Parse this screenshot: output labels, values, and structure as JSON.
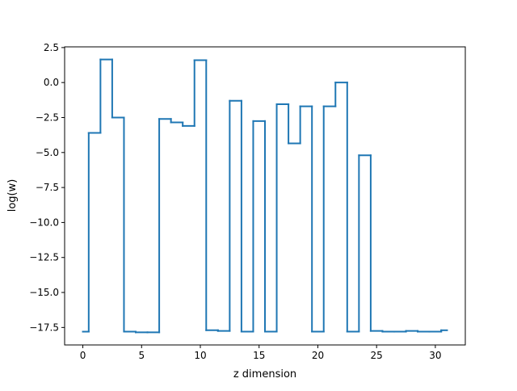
{
  "colors": {
    "series_line": "#1f77b4",
    "axes": "#000000",
    "background": "#ffffff"
  },
  "chart_data": {
    "type": "line",
    "drawstyle": "steps-mid",
    "title": "",
    "xlabel": "z dimension",
    "ylabel": "log(w)",
    "xlim": [
      -1.55,
      32.55
    ],
    "ylim": [
      -18.75,
      2.55
    ],
    "grid": false,
    "legend": "none",
    "x_ticks": [
      0,
      5,
      10,
      15,
      20,
      25,
      30
    ],
    "x_tick_labels": [
      "0",
      "5",
      "10",
      "15",
      "20",
      "25",
      "30"
    ],
    "y_ticks": [
      2.5,
      0.0,
      -2.5,
      -5.0,
      -7.5,
      -10.0,
      -12.5,
      -15.0,
      -17.5
    ],
    "y_tick_labels": [
      "2.5",
      "0.0",
      "−2.5",
      "−5.0",
      "−7.5",
      "−10.0",
      "−12.5",
      "−15.0",
      "−17.5"
    ],
    "x": [
      0,
      1,
      2,
      3,
      4,
      5,
      6,
      7,
      8,
      9,
      10,
      11,
      12,
      13,
      14,
      15,
      16,
      17,
      18,
      19,
      20,
      21,
      22,
      23,
      24,
      25,
      26,
      27,
      28,
      29,
      30,
      31
    ],
    "series": [
      {
        "values": [
          -17.8,
          -3.6,
          1.65,
          -2.5,
          -17.8,
          -17.85,
          -17.85,
          -2.6,
          -2.85,
          -3.1,
          1.6,
          -17.7,
          -17.75,
          -1.3,
          -17.8,
          -2.75,
          -17.8,
          -1.55,
          -4.35,
          -1.7,
          -17.8,
          -1.7,
          0.0,
          -17.8,
          -5.2,
          -17.75,
          -17.8,
          -17.8,
          -17.75,
          -17.8,
          -17.8,
          -17.7
        ]
      }
    ]
  }
}
